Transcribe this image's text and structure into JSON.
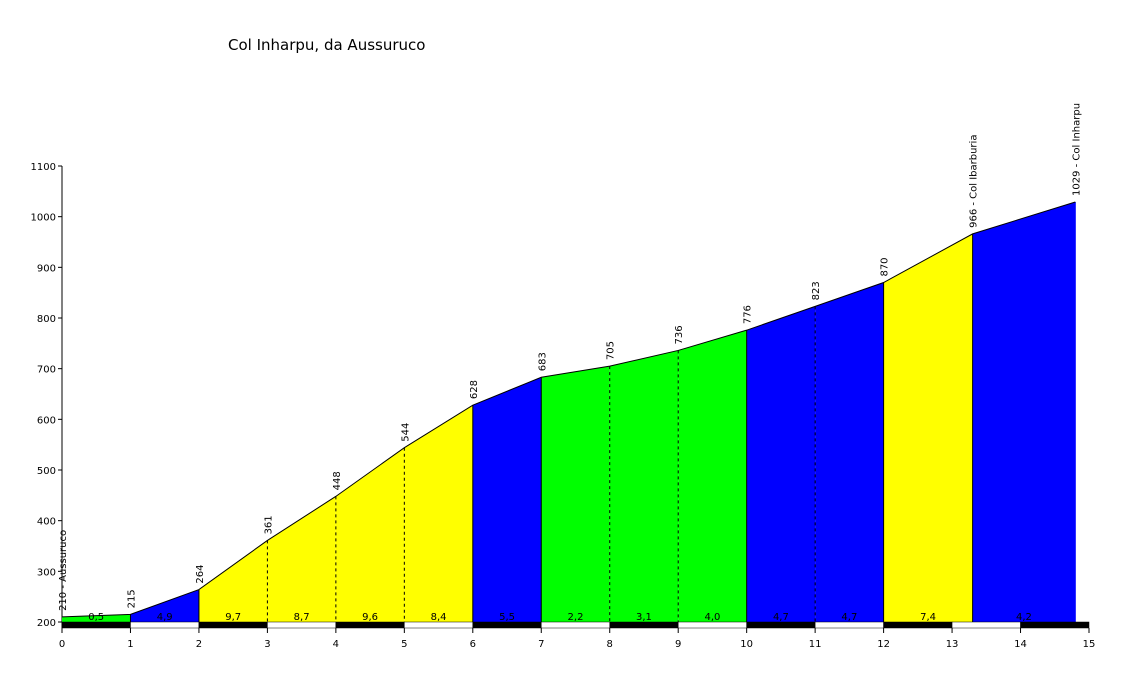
{
  "chart_data": {
    "type": "elevation-profile",
    "title": "Col Inharpu, da Aussuruco",
    "km": [
      0,
      1,
      2,
      3,
      4,
      5,
      6,
      7,
      8,
      9,
      10,
      11,
      12,
      13.3,
      14.8
    ],
    "elevation": [
      210,
      215,
      264,
      361,
      448,
      544,
      628,
      683,
      705,
      736,
      776,
      823,
      870,
      966,
      1029
    ],
    "elevation_labels": [
      "210 - Aussuruco",
      "215",
      "264",
      "361",
      "448",
      "544",
      "628",
      "683",
      "705",
      "736",
      "776",
      "823",
      "870",
      "966 - Col Ibarburia",
      "1029 - Col Inharpu"
    ],
    "gradients": [
      0.5,
      4.9,
      9.7,
      8.7,
      9.6,
      8.4,
      5.5,
      2.2,
      3.1,
      4.0,
      4.7,
      4.7,
      7.4,
      4.2
    ],
    "gradient_labels": [
      "0,5",
      "4,9",
      "9,7",
      "8,7",
      "9,6",
      "8,4",
      "5,5",
      "2,2",
      "3,1",
      "4,0",
      "4,7",
      "4,7",
      "7,4",
      "4,2"
    ],
    "segment_colors": [
      "#00ff00",
      "#0000ff",
      "#ffff00",
      "#ffff00",
      "#ffff00",
      "#ffff00",
      "#0000ff",
      "#00ff00",
      "#00ff00",
      "#00ff00",
      "#0000ff",
      "#0000ff",
      "#ffff00",
      "#0000ff"
    ],
    "xlim": [
      0,
      15
    ],
    "xticks": [
      0,
      1,
      2,
      3,
      4,
      5,
      6,
      7,
      8,
      9,
      10,
      11,
      12,
      13,
      14,
      15
    ],
    "ylim": [
      200,
      1100
    ],
    "yticks": [
      200,
      300,
      400,
      500,
      600,
      700,
      800,
      900,
      1000,
      1100
    ]
  }
}
